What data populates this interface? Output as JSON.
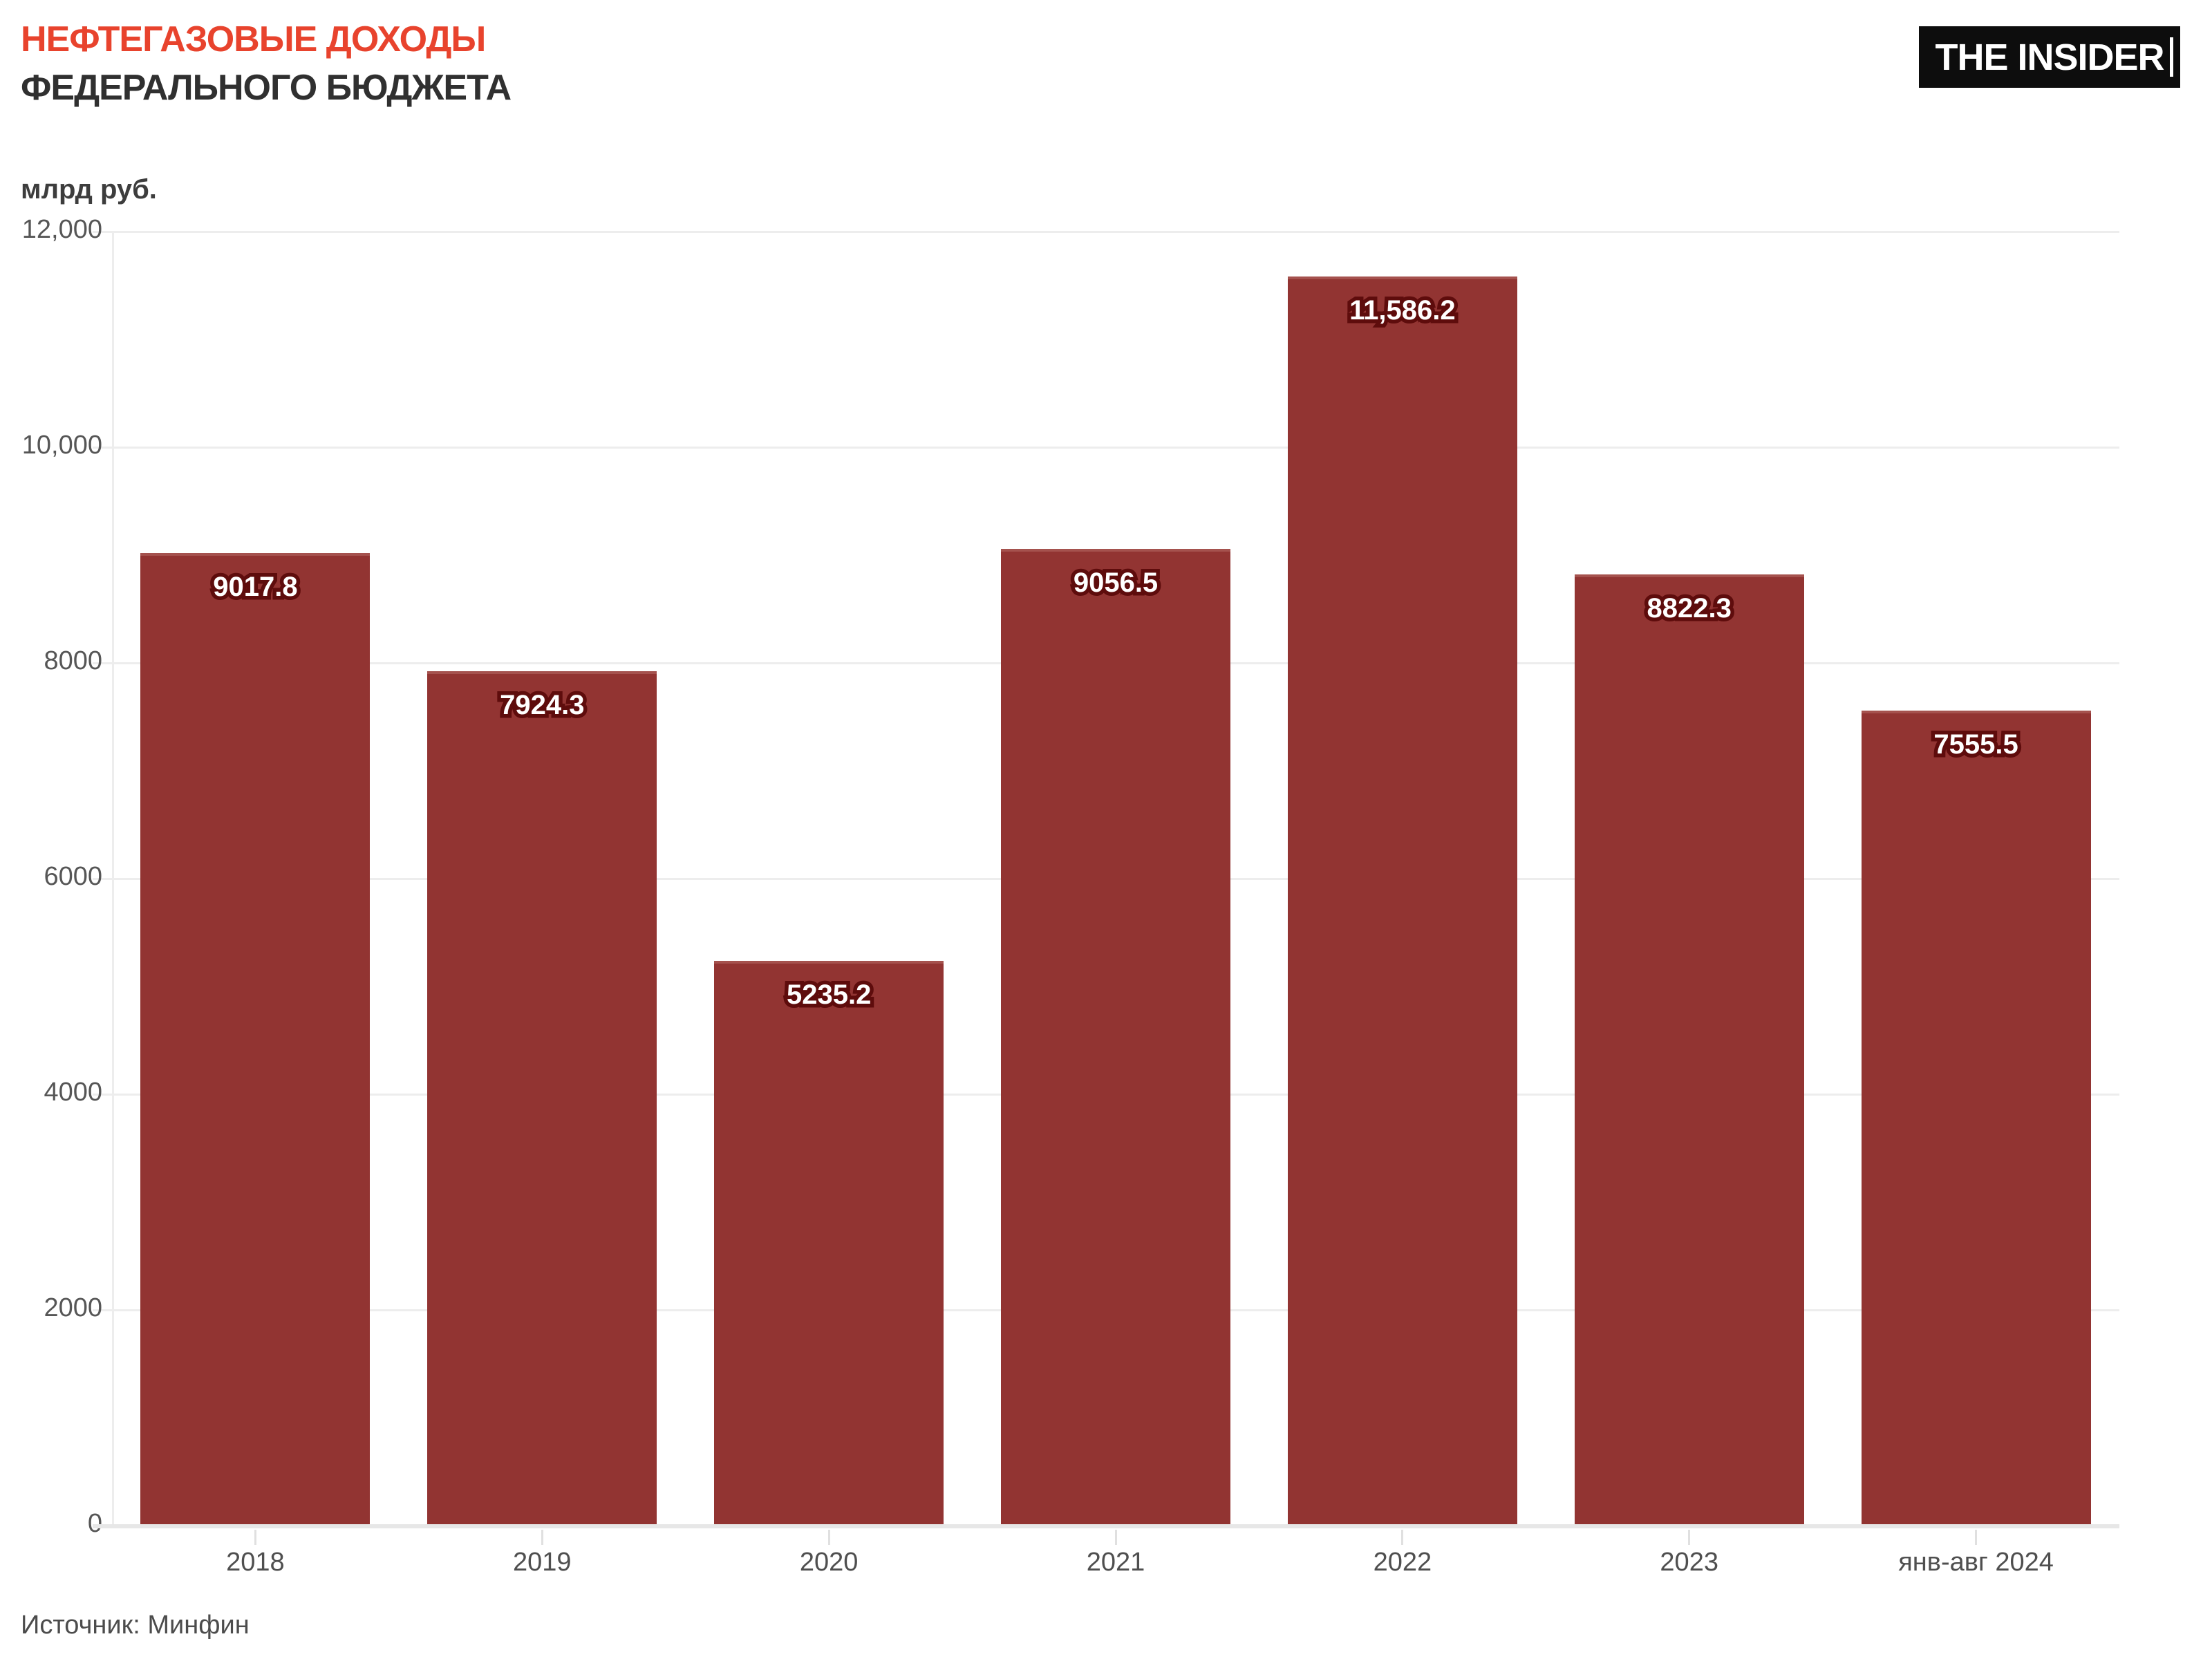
{
  "header": {
    "title_line1": "НЕФТЕГАЗОВЫЕ ДОХОДЫ",
    "title_line2": "ФЕДЕРАЛЬНОГО БЮДЖЕТА",
    "logo_text": "THE INSIDER"
  },
  "colors": {
    "accent_red": "#e8432d",
    "title_dark": "#303030",
    "bar_fill": "#923432",
    "bar_label_outline": "#5e0c0c",
    "bar_label_fill": "#ffffff",
    "grid": "#ededed",
    "axis_text": "#565656",
    "logo_bg": "#0d0d0d"
  },
  "chart_data": {
    "type": "bar",
    "title": "НЕФТЕГАЗОВЫЕ ДОХОДЫ ФЕДЕРАЛЬНОГО БЮДЖЕТА",
    "unit_label": "млрд руб.",
    "xlabel": "",
    "ylabel": "млрд руб.",
    "categories": [
      "2018",
      "2019",
      "2020",
      "2021",
      "2022",
      "2023",
      "янв-авг 2024"
    ],
    "values": [
      9017.8,
      7924.3,
      5235.2,
      9056.5,
      11586.2,
      8822.3,
      7555.5
    ],
    "value_labels": [
      "9017.8",
      "7924.3",
      "5235.2",
      "9056.5",
      "11,586.2",
      "8822.3",
      "7555.5"
    ],
    "ylim": [
      0,
      12000
    ],
    "ytick_values": [
      0,
      2000,
      4000,
      6000,
      8000,
      10000,
      12000
    ],
    "ytick_labels": [
      "0",
      "2000",
      "4000",
      "6000",
      "8000",
      "10,000",
      "12,000"
    ],
    "grid": true,
    "legend": false
  },
  "footer": {
    "source": "Источник: Минфин"
  }
}
